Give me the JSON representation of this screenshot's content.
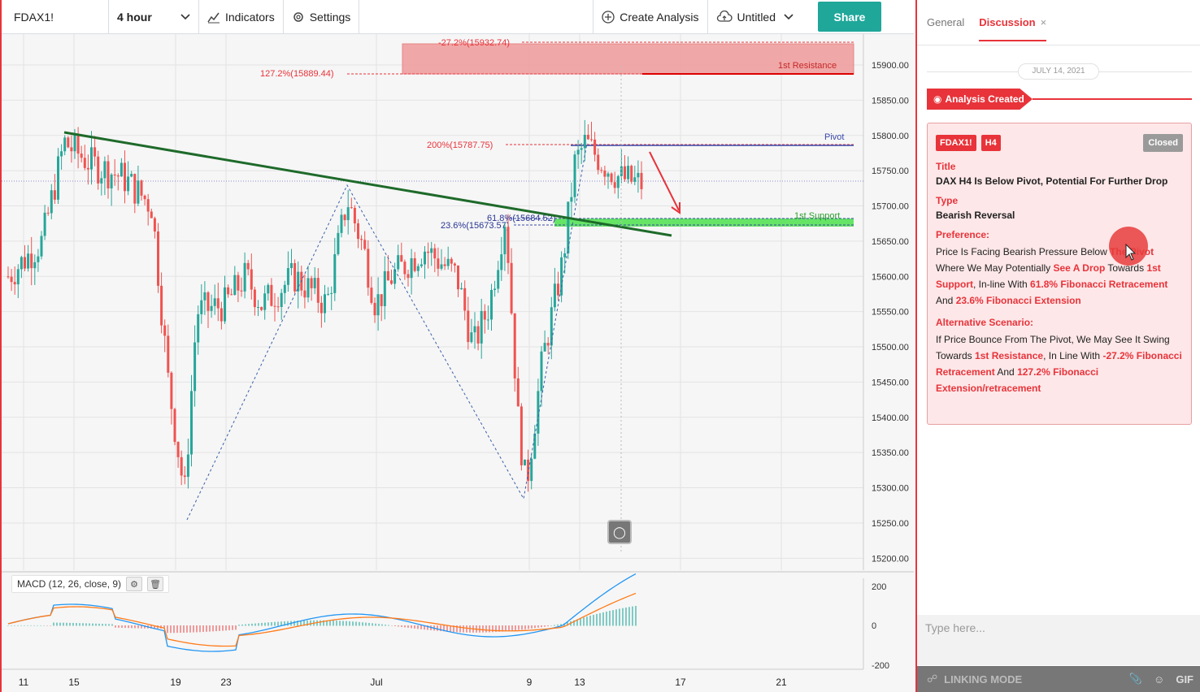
{
  "toolbar": {
    "symbol": "FDAX1!",
    "interval": "4 hour",
    "indicators_label": "Indicators",
    "settings_label": "Settings",
    "create_analysis_label": "Create Analysis",
    "save_label": "Untitled",
    "share_label": "Share"
  },
  "chart": {
    "price_ticks": [
      "15900.00",
      "15850.00",
      "15800.00",
      "15750.00",
      "15700.00",
      "15650.00",
      "15600.00",
      "15550.00",
      "15500.00",
      "15450.00",
      "15400.00",
      "15350.00",
      "15300.00",
      "15250.00",
      "15200.00"
    ],
    "time_ticks": [
      "11",
      "15",
      "19",
      "23",
      "Jul",
      "9",
      "13",
      "17",
      "21"
    ],
    "macd_ticks": [
      "200",
      "0",
      "-200"
    ],
    "annotations": {
      "fib_neg272": "-27.2%(15932.74)",
      "fib_1272": "127.2%(15889.44)",
      "resistance": "1st Resistance",
      "pivot": "Pivot",
      "fib_200": "200%(15787.75)",
      "fib_618": "61.8%(15684.52)",
      "fib_236": "23.6%(15673.57)",
      "support": "1st Support"
    },
    "macd_label": "MACD (12, 26, close, 9)",
    "colors": {
      "up": "#26a69a",
      "down": "#ef5350",
      "trendline": "#1e6a2a",
      "pivot": "#3949ab",
      "resistance": "#e8333a",
      "support": "#35d035"
    }
  },
  "panel": {
    "tabs": [
      "General",
      "Discussion"
    ],
    "date": "JULY 14, 2021",
    "created_label": "Analysis Created",
    "card": {
      "symbol_tag": "FDAX1!",
      "tf_tag": "H4",
      "status": "Closed",
      "title_label": "Title",
      "title": "DAX H4 Is Below Pivot, Potential For Further Drop",
      "type_label": "Type",
      "type": "Bearish Reversal",
      "pref_label": "Preference:",
      "pref_a": "Price Is Facing Bearish Pressure Below ",
      "pref_b": "The Pivot",
      "pref_c": " Where We May Potentially ",
      "pref_d": "See A Drop",
      "pref_e": " Towards ",
      "pref_f": "1st Support",
      "pref_g": ", In-line With ",
      "pref_h": "61.8% Fibonacci Retracement",
      "pref_i": " And ",
      "pref_j": "23.6% Fibonacci Extension",
      "alt_label": "Alternative Scenario:",
      "alt_a": "If Price Bounce From The Pivot, We May See It Swing Towards ",
      "alt_b": "1st Resistance",
      "alt_c": ", In Line With ",
      "alt_d": "-27.2% Fibonacci Retracement",
      "alt_e": " And ",
      "alt_f": "127.2% Fibonacci Extension/retracement"
    },
    "input_placeholder": "Type here...",
    "linking_mode": "LINKING MODE",
    "gif_label": "GIF"
  }
}
